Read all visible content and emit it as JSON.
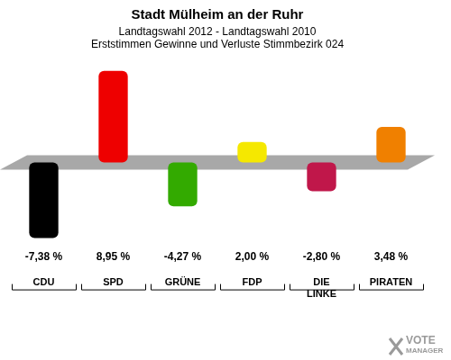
{
  "chart_data": {
    "type": "bar",
    "title": "Stadt Mülheim an der Ruhr",
    "subtitle": [
      "Landtagswahl 2012 - Landtagswahl 2010",
      "Erststimmen Gewinne und Verluste Stimmbezirk 024"
    ],
    "categories": [
      "CDU",
      "SPD",
      "GRÜNE",
      "FDP",
      "DIE LINKE",
      "PIRATEN"
    ],
    "values": [
      -7.38,
      8.95,
      -4.27,
      2.0,
      -2.8,
      3.48
    ],
    "value_labels": [
      "-7,38 %",
      "8,95 %",
      "-4,27 %",
      "2,00 %",
      "-2,80 %",
      "3,48 %"
    ],
    "colors": [
      "#000000",
      "#ee0000",
      "#33aa00",
      "#f5e800",
      "#c0174a",
      "#f08000"
    ],
    "ylim": [
      -8,
      10
    ],
    "grid": false,
    "data_labels": true,
    "tick_labels": "x",
    "annotations": [
      "VOTE",
      "MANAGER"
    ]
  }
}
